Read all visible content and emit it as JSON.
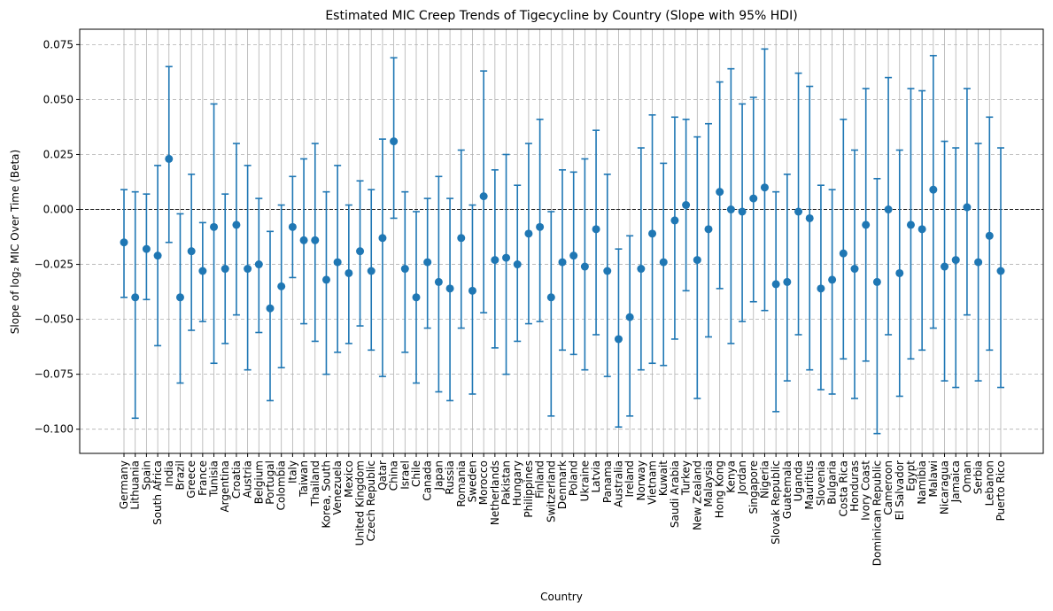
{
  "chart_data": {
    "type": "scatter",
    "title": "Estimated MIC Creep Trends of Tigecycline by Country (Slope with 95% HDI)",
    "xlabel": "Country",
    "ylabel": "Slope of log₂ MIC Over Time (Beta)",
    "ylim": [
      -0.111,
      0.082
    ],
    "yticks": [
      -0.1,
      -0.075,
      -0.05,
      -0.025,
      0.0,
      0.025,
      0.05,
      0.075
    ],
    "ytick_labels": [
      "−0.100",
      "−0.075",
      "−0.050",
      "−0.025",
      "0.000",
      "0.025",
      "0.050",
      "0.075"
    ],
    "grid": true,
    "reference_line": 0.0,
    "color": "#1f77b4",
    "categories": [
      "Germany",
      "Lithuania",
      "Spain",
      "South Africa",
      "India",
      "Brazil",
      "Greece",
      "France",
      "Tunisia",
      "Argentina",
      "Croatia",
      "Austria",
      "Belgium",
      "Portugal",
      "Colombia",
      "Italy",
      "Taiwan",
      "Thailand",
      "Korea, South",
      "Venezuela",
      "Mexico",
      "United Kingdom",
      "Czech Republic",
      "Qatar",
      "China",
      "Israel",
      "Chile",
      "Canada",
      "Japan",
      "Russia",
      "Romania",
      "Sweden",
      "Morocco",
      "Netherlands",
      "Pakistan",
      "Hungary",
      "Philippines",
      "Finland",
      "Switzerland",
      "Denmark",
      "Poland",
      "Ukraine",
      "Latvia",
      "Panama",
      "Australia",
      "Ireland",
      "Norway",
      "Vietnam",
      "Kuwait",
      "Saudi Arabia",
      "Turkey",
      "New Zealand",
      "Malaysia",
      "Hong Kong",
      "Kenya",
      "Jordan",
      "Singapore",
      "Nigeria",
      "Slovak Republic",
      "Guatemala",
      "Uganda",
      "Mauritius",
      "Slovenia",
      "Bulgaria",
      "Costa Rica",
      "Honduras",
      "Ivory Coast",
      "Dominican Republic",
      "Cameroon",
      "El Salvador",
      "Egypt",
      "Namibia",
      "Malawi",
      "Nicaragua",
      "Jamaica",
      "Oman",
      "Serbia",
      "Lebanon",
      "Puerto Rico"
    ],
    "values": [
      -0.015,
      -0.04,
      -0.018,
      -0.021,
      0.023,
      -0.04,
      -0.019,
      -0.028,
      -0.008,
      -0.027,
      -0.007,
      -0.027,
      -0.025,
      -0.045,
      -0.035,
      -0.008,
      -0.014,
      -0.014,
      -0.032,
      -0.024,
      -0.029,
      -0.019,
      -0.028,
      -0.013,
      0.031,
      -0.027,
      -0.04,
      -0.024,
      -0.033,
      -0.036,
      -0.013,
      -0.037,
      0.006,
      -0.023,
      -0.022,
      -0.025,
      -0.011,
      -0.008,
      -0.04,
      -0.024,
      -0.021,
      -0.026,
      -0.009,
      -0.028,
      -0.059,
      -0.049,
      -0.027,
      -0.011,
      -0.024,
      -0.005,
      0.002,
      -0.023,
      -0.009,
      0.008,
      0.0,
      -0.001,
      0.005,
      0.01,
      -0.034,
      -0.033,
      -0.001,
      -0.004,
      -0.036,
      -0.032,
      -0.02,
      -0.027,
      -0.007,
      -0.033,
      0.0,
      -0.029,
      -0.007,
      -0.009,
      0.009,
      -0.026,
      -0.023,
      0.001,
      -0.024,
      -0.012,
      -0.028
    ],
    "hdi_low": [
      -0.04,
      -0.095,
      -0.041,
      -0.062,
      -0.015,
      -0.079,
      -0.055,
      -0.051,
      -0.07,
      -0.061,
      -0.048,
      -0.073,
      -0.056,
      -0.087,
      -0.072,
      -0.031,
      -0.052,
      -0.06,
      -0.075,
      -0.065,
      -0.061,
      -0.053,
      -0.064,
      -0.076,
      -0.004,
      -0.065,
      -0.079,
      -0.054,
      -0.083,
      -0.087,
      -0.054,
      -0.084,
      -0.047,
      -0.063,
      -0.075,
      -0.06,
      -0.052,
      -0.051,
      -0.094,
      -0.064,
      -0.066,
      -0.073,
      -0.057,
      -0.076,
      -0.099,
      -0.094,
      -0.073,
      -0.07,
      -0.071,
      -0.059,
      -0.037,
      -0.086,
      -0.058,
      -0.036,
      -0.061,
      -0.051,
      -0.042,
      -0.046,
      -0.092,
      -0.078,
      -0.057,
      -0.073,
      -0.082,
      -0.084,
      -0.068,
      -0.086,
      -0.069,
      -0.102,
      -0.057,
      -0.085,
      -0.068,
      -0.064,
      -0.054,
      -0.078,
      -0.081,
      -0.048,
      -0.078,
      -0.064,
      -0.081
    ],
    "hdi_high": [
      0.009,
      0.008,
      0.007,
      0.02,
      0.065,
      -0.002,
      0.016,
      -0.006,
      0.048,
      0.007,
      0.03,
      0.02,
      0.005,
      -0.01,
      0.002,
      0.015,
      0.023,
      0.03,
      0.008,
      0.02,
      0.002,
      0.013,
      0.009,
      0.032,
      0.069,
      0.008,
      -0.001,
      0.005,
      0.015,
      0.005,
      0.027,
      0.002,
      0.063,
      0.018,
      0.025,
      0.011,
      0.03,
      0.041,
      -0.001,
      0.018,
      0.017,
      0.023,
      0.036,
      0.016,
      -0.018,
      -0.012,
      0.028,
      0.043,
      0.021,
      0.042,
      0.041,
      0.033,
      0.039,
      0.058,
      0.064,
      0.048,
      0.051,
      0.073,
      0.008,
      0.016,
      0.062,
      0.056,
      0.011,
      0.009,
      0.041,
      0.027,
      0.055,
      0.014,
      0.06,
      0.027,
      0.055,
      0.054,
      0.07,
      0.031,
      0.028,
      0.055,
      0.03,
      0.042,
      0.028
    ]
  }
}
